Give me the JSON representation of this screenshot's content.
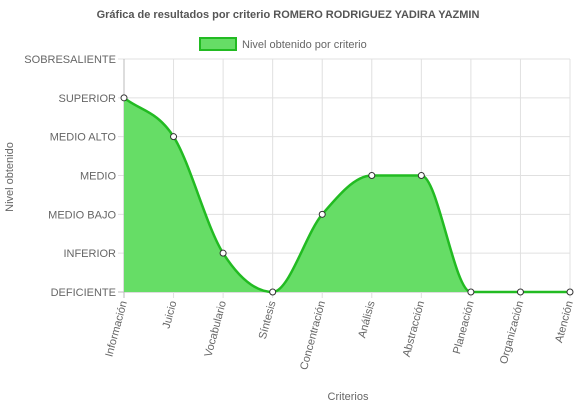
{
  "chart_data": {
    "type": "area",
    "title": "Gráfica de resultados por criterio ROMERO RODRIGUEZ YADIRA YAZMIN",
    "xlabel": "Criterios",
    "ylabel": "Nivel obtenido",
    "legend_position": "top",
    "grid": true,
    "levels": [
      "DEFICIENTE",
      "INFERIOR",
      "MEDIO BAJO",
      "MEDIO",
      "MEDIO ALTO",
      "SUPERIOR",
      "SOBRESALIENTE"
    ],
    "ylim": [
      0,
      6
    ],
    "categories": [
      "Información",
      "Juicio",
      "Vocabulario",
      "Síntesis",
      "Concentración",
      "Análisis",
      "Abstracción",
      "Planeación",
      "Organización",
      "Atención"
    ],
    "series": [
      {
        "name": "Nivel obtenido por criterio",
        "values": [
          5,
          4,
          1,
          0,
          2,
          3,
          3,
          0,
          0,
          0
        ],
        "fill_color": "#66dd66",
        "line_color": "#22bb22"
      }
    ]
  }
}
